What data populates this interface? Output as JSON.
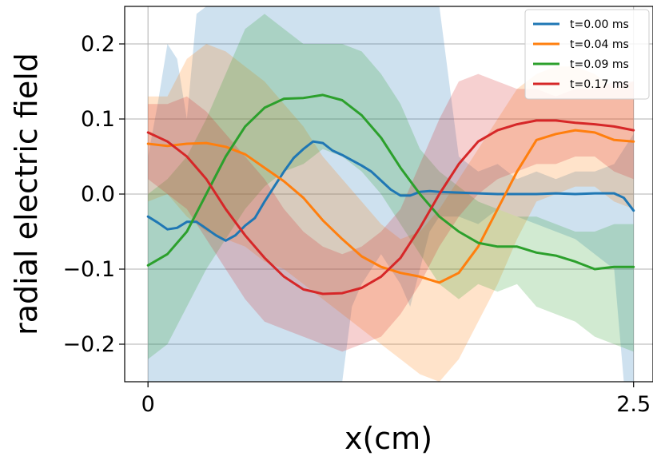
{
  "chart_data": {
    "type": "line",
    "title": "",
    "xlabel": "x(cm)",
    "ylabel": "radial electric field",
    "xlim": [
      -0.12,
      2.6
    ],
    "ylim": [
      -0.25,
      0.25
    ],
    "x_ticks": [
      {
        "value": 0,
        "label": "0"
      },
      {
        "value": 2.5,
        "label": "2.5"
      }
    ],
    "y_ticks": [
      {
        "value": 0.2,
        "label": "0.2"
      },
      {
        "value": 0.1,
        "label": "0.1"
      },
      {
        "value": 0.0,
        "label": "0.0"
      },
      {
        "value": -0.1,
        "label": "−0.1"
      },
      {
        "value": -0.2,
        "label": "−0.2"
      }
    ],
    "grid": "horizontal",
    "legend_position": "top-right",
    "series": [
      {
        "name": "t=0.00 ms",
        "color": "#1f77b4",
        "x": [
          0.0,
          0.05,
          0.1,
          0.15,
          0.2,
          0.25,
          0.3,
          0.35,
          0.4,
          0.45,
          0.5,
          0.55,
          0.6,
          0.65,
          0.7,
          0.75,
          0.8,
          0.85,
          0.9,
          0.95,
          1.0,
          1.05,
          1.1,
          1.15,
          1.2,
          1.25,
          1.3,
          1.35,
          1.4,
          1.45,
          1.5,
          1.6,
          1.7,
          1.8,
          1.9,
          2.0,
          2.1,
          2.2,
          2.3,
          2.4,
          2.45,
          2.5
        ],
        "y": [
          -0.03,
          -0.038,
          -0.047,
          -0.045,
          -0.037,
          -0.037,
          -0.046,
          -0.055,
          -0.062,
          -0.055,
          -0.042,
          -0.032,
          -0.01,
          0.01,
          0.03,
          0.048,
          0.06,
          0.07,
          0.068,
          0.058,
          0.052,
          0.045,
          0.038,
          0.03,
          0.018,
          0.006,
          -0.002,
          -0.002,
          0.003,
          0.004,
          0.003,
          0.002,
          0.001,
          0.0,
          0.0,
          0.0,
          0.001,
          0.0,
          0.001,
          0.001,
          -0.005,
          -0.022
        ],
        "upper": [
          0.05,
          0.12,
          0.2,
          0.18,
          0.1,
          0.24,
          0.28,
          0.3,
          0.3,
          0.3,
          0.3,
          0.3,
          0.3,
          0.3,
          0.3,
          0.3,
          0.3,
          0.3,
          0.3,
          0.3,
          0.3,
          0.3,
          0.3,
          0.3,
          0.3,
          0.3,
          0.3,
          0.3,
          0.3,
          0.3,
          0.3,
          0.05,
          0.03,
          0.04,
          0.02,
          0.03,
          0.02,
          0.03,
          0.03,
          0.04,
          0.06,
          0.08
        ],
        "lower": [
          -0.3,
          -0.3,
          -0.3,
          -0.3,
          -0.3,
          -0.3,
          -0.3,
          -0.3,
          -0.3,
          -0.3,
          -0.3,
          -0.3,
          -0.3,
          -0.3,
          -0.3,
          -0.3,
          -0.3,
          -0.3,
          -0.3,
          -0.3,
          -0.3,
          -0.15,
          -0.12,
          -0.1,
          -0.08,
          -0.1,
          -0.12,
          -0.15,
          -0.1,
          -0.05,
          -0.03,
          -0.03,
          -0.04,
          -0.02,
          -0.03,
          -0.04,
          -0.05,
          -0.06,
          -0.08,
          -0.1,
          -0.25,
          -0.3
        ]
      },
      {
        "name": "t=0.04 ms",
        "color": "#ff7f0e",
        "x": [
          0.0,
          0.1,
          0.2,
          0.3,
          0.4,
          0.5,
          0.6,
          0.7,
          0.8,
          0.9,
          1.0,
          1.1,
          1.2,
          1.3,
          1.4,
          1.5,
          1.6,
          1.7,
          1.8,
          1.9,
          2.0,
          2.1,
          2.2,
          2.3,
          2.4,
          2.5
        ],
        "y": [
          0.067,
          0.064,
          0.067,
          0.068,
          0.063,
          0.053,
          0.035,
          0.017,
          -0.005,
          -0.035,
          -0.06,
          -0.083,
          -0.097,
          -0.105,
          -0.11,
          -0.118,
          -0.105,
          -0.07,
          -0.02,
          0.03,
          0.072,
          0.08,
          0.085,
          0.082,
          0.072,
          0.07
        ],
        "upper": [
          0.13,
          0.13,
          0.18,
          0.2,
          0.19,
          0.17,
          0.15,
          0.12,
          0.09,
          0.05,
          0.02,
          -0.01,
          -0.04,
          -0.06,
          -0.05,
          -0.02,
          0.02,
          0.06,
          0.1,
          0.14,
          0.16,
          0.17,
          0.17,
          0.16,
          0.14,
          0.15
        ],
        "lower": [
          -0.01,
          0.0,
          -0.03,
          -0.05,
          -0.06,
          -0.07,
          -0.09,
          -0.1,
          -0.12,
          -0.14,
          -0.16,
          -0.18,
          -0.2,
          -0.22,
          -0.24,
          -0.26,
          -0.22,
          -0.17,
          -0.12,
          -0.06,
          -0.01,
          0.0,
          0.01,
          0.01,
          -0.01,
          -0.02
        ]
      },
      {
        "name": "t=0.09 ms",
        "color": "#2ca02c",
        "x": [
          0.0,
          0.1,
          0.2,
          0.3,
          0.4,
          0.5,
          0.6,
          0.7,
          0.8,
          0.9,
          1.0,
          1.1,
          1.2,
          1.3,
          1.4,
          1.5,
          1.6,
          1.7,
          1.8,
          1.9,
          2.0,
          2.1,
          2.2,
          2.3,
          2.4,
          2.5
        ],
        "y": [
          -0.095,
          -0.08,
          -0.05,
          0.0,
          0.05,
          0.09,
          0.115,
          0.127,
          0.128,
          0.132,
          0.125,
          0.105,
          0.075,
          0.035,
          0.0,
          -0.03,
          -0.05,
          -0.065,
          -0.07,
          -0.07,
          -0.078,
          -0.082,
          -0.09,
          -0.1,
          -0.097,
          -0.097
        ],
        "upper": [
          0.0,
          0.02,
          0.05,
          0.1,
          0.16,
          0.22,
          0.24,
          0.22,
          0.2,
          0.2,
          0.2,
          0.19,
          0.16,
          0.12,
          0.06,
          0.03,
          0.01,
          -0.01,
          -0.02,
          -0.03,
          -0.03,
          -0.04,
          -0.05,
          -0.05,
          -0.04,
          -0.04
        ],
        "lower": [
          -0.22,
          -0.2,
          -0.15,
          -0.1,
          -0.06,
          -0.02,
          0.01,
          0.03,
          0.04,
          0.06,
          0.05,
          0.03,
          0.0,
          -0.04,
          -0.08,
          -0.12,
          -0.14,
          -0.12,
          -0.13,
          -0.12,
          -0.15,
          -0.16,
          -0.17,
          -0.19,
          -0.2,
          -0.21
        ]
      },
      {
        "name": "t=0.17 ms",
        "color": "#d62728",
        "x": [
          0.0,
          0.1,
          0.2,
          0.3,
          0.4,
          0.5,
          0.6,
          0.7,
          0.8,
          0.9,
          1.0,
          1.1,
          1.2,
          1.3,
          1.4,
          1.5,
          1.6,
          1.7,
          1.8,
          1.9,
          2.0,
          2.1,
          2.2,
          2.3,
          2.4,
          2.5
        ],
        "y": [
          0.082,
          0.07,
          0.05,
          0.02,
          -0.02,
          -0.055,
          -0.085,
          -0.11,
          -0.127,
          -0.133,
          -0.132,
          -0.125,
          -0.11,
          -0.085,
          -0.045,
          0.0,
          0.04,
          0.07,
          0.085,
          0.093,
          0.098,
          0.098,
          0.095,
          0.093,
          0.09,
          0.085
        ],
        "upper": [
          0.12,
          0.12,
          0.13,
          0.11,
          0.08,
          0.05,
          0.02,
          -0.02,
          -0.05,
          -0.07,
          -0.08,
          -0.07,
          -0.05,
          -0.02,
          0.04,
          0.1,
          0.15,
          0.16,
          0.15,
          0.14,
          0.14,
          0.13,
          0.14,
          0.14,
          0.15,
          0.15
        ],
        "lower": [
          0.02,
          0.0,
          -0.02,
          -0.06,
          -0.1,
          -0.14,
          -0.17,
          -0.18,
          -0.19,
          -0.2,
          -0.21,
          -0.2,
          -0.19,
          -0.16,
          -0.12,
          -0.07,
          -0.03,
          0.0,
          0.02,
          0.03,
          0.04,
          0.04,
          0.05,
          0.05,
          0.03,
          0.02
        ]
      }
    ]
  }
}
